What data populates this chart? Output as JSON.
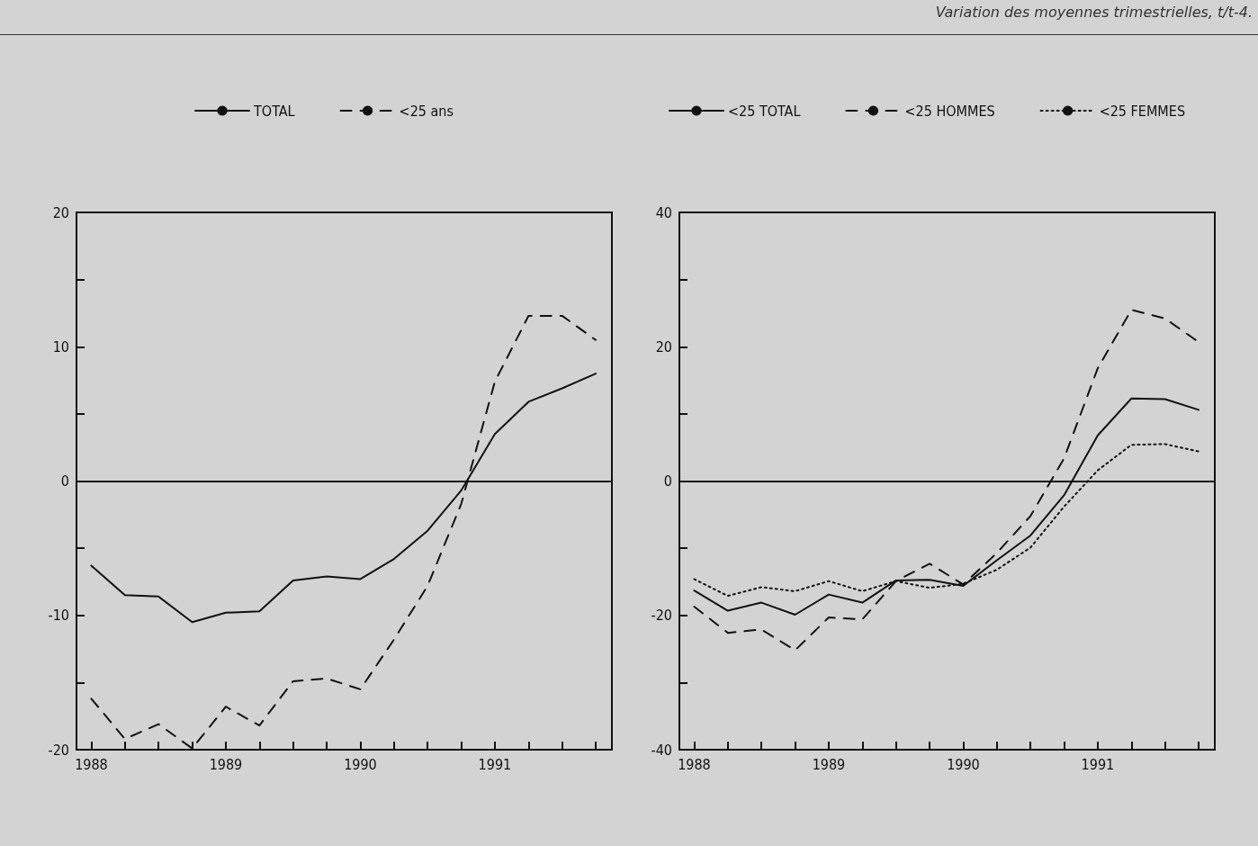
{
  "chart_data": [
    {
      "type": "line",
      "annotations": [
        "Variation des moyennes trimestrielles, t/t-4."
      ],
      "x": [
        1988,
        1988.25,
        1988.5,
        1988.75,
        1989,
        1989.25,
        1989.5,
        1989.75,
        1990,
        1990.25,
        1990.5,
        1990.75,
        1991,
        1991.25,
        1991.5,
        1991.75
      ],
      "series": [
        {
          "name": "TOTAL",
          "color": "#111111",
          "line_style": "solid",
          "values": [
            -6.3,
            -8.5,
            -8.6,
            -10.5,
            -9.8,
            -9.7,
            -7.4,
            -7.1,
            -7.3,
            -5.8,
            -3.7,
            -0.7,
            3.5,
            5.9,
            6.9,
            8.0
          ]
        },
        {
          "name": "<25 ans",
          "color": "#111111",
          "line_style": "dashed",
          "values": [
            -16.2,
            -19.2,
            -18.1,
            -19.9,
            -16.8,
            -18.2,
            -14.9,
            -14.7,
            -15.5,
            -11.8,
            -7.8,
            -1.7,
            7.4,
            12.3,
            12.3,
            10.5
          ]
        }
      ],
      "xlim": [
        1987.89,
        1991.87
      ],
      "xticks": [
        1988,
        {
          "value": 1988.25,
          "label": null
        },
        {
          "value": 1988.5,
          "label": null
        },
        {
          "value": 1988.75,
          "label": null
        },
        1989,
        {
          "value": 1989.25,
          "label": null
        },
        {
          "value": 1989.5,
          "label": null
        },
        {
          "value": 1989.75,
          "label": null
        },
        1990,
        {
          "value": 1990.25,
          "label": null
        },
        {
          "value": 1990.5,
          "label": null
        },
        {
          "value": 1990.75,
          "label": null
        },
        1991,
        {
          "value": 1991.25,
          "label": null
        },
        {
          "value": 1991.5,
          "label": null
        },
        {
          "value": 1991.75,
          "label": null
        }
      ],
      "ylim": [
        -20,
        20
      ],
      "yticks": [
        -20,
        {
          "value": -15,
          "label": null
        },
        -10,
        {
          "value": -5,
          "label": null
        },
        0,
        {
          "value": 5,
          "label": null
        },
        10,
        {
          "value": 15,
          "label": null
        },
        20
      ],
      "ref_lines": [
        {
          "axis": "y",
          "value": 0,
          "label": null,
          "color": "#111111"
        }
      ],
      "legend": "top",
      "marker": "none",
      "grid": false
    },
    {
      "type": "line",
      "x": [
        1988,
        1988.25,
        1988.5,
        1988.75,
        1989,
        1989.25,
        1989.5,
        1989.75,
        1990,
        1990.25,
        1990.5,
        1990.75,
        1991,
        1991.25,
        1991.5,
        1991.75
      ],
      "series": [
        {
          "name": "<25 TOTAL",
          "color": "#111111",
          "line_style": "solid",
          "values": [
            -16.3,
            -19.3,
            -18.1,
            -19.9,
            -16.9,
            -18.1,
            -14.8,
            -14.7,
            -15.6,
            -11.8,
            -8.1,
            -2.1,
            6.8,
            12.3,
            12.2,
            10.6
          ]
        },
        {
          "name": "<25 HOMMES",
          "color": "#111111",
          "line_style": "dashed",
          "values": [
            -18.7,
            -22.6,
            -22.1,
            -25.2,
            -20.3,
            -20.6,
            -14.9,
            -12.3,
            -15.4,
            -10.7,
            -5.2,
            3.4,
            16.8,
            25.5,
            24.2,
            20.7
          ]
        },
        {
          "name": "<25 FEMMES",
          "color": "#111111",
          "line_style": "dotted",
          "values": [
            -14.6,
            -17.1,
            -15.8,
            -16.4,
            -14.9,
            -16.4,
            -14.9,
            -15.9,
            -15.3,
            -13.2,
            -9.9,
            -3.8,
            1.6,
            5.4,
            5.5,
            4.4
          ]
        }
      ],
      "xlim": [
        1987.89,
        1991.87
      ],
      "xticks": [
        1988,
        {
          "value": 1988.25,
          "label": null
        },
        {
          "value": 1988.5,
          "label": null
        },
        {
          "value": 1988.75,
          "label": null
        },
        1989,
        {
          "value": 1989.25,
          "label": null
        },
        {
          "value": 1989.5,
          "label": null
        },
        {
          "value": 1989.75,
          "label": null
        },
        1990,
        {
          "value": 1990.25,
          "label": null
        },
        {
          "value": 1990.5,
          "label": null
        },
        {
          "value": 1990.75,
          "label": null
        },
        1991,
        {
          "value": 1991.25,
          "label": null
        },
        {
          "value": 1991.5,
          "label": null
        },
        {
          "value": 1991.75,
          "label": null
        }
      ],
      "ylim": [
        -40,
        40
      ],
      "yticks": [
        -40,
        {
          "value": -30,
          "label": null
        },
        -20,
        {
          "value": -10,
          "label": null
        },
        0,
        {
          "value": 10,
          "label": null
        },
        20,
        {
          "value": 30,
          "label": null
        },
        40
      ],
      "ref_lines": [
        {
          "axis": "y",
          "value": 0,
          "label": null,
          "color": "#111111"
        }
      ],
      "legend": "top",
      "marker": "none",
      "grid": false
    }
  ]
}
